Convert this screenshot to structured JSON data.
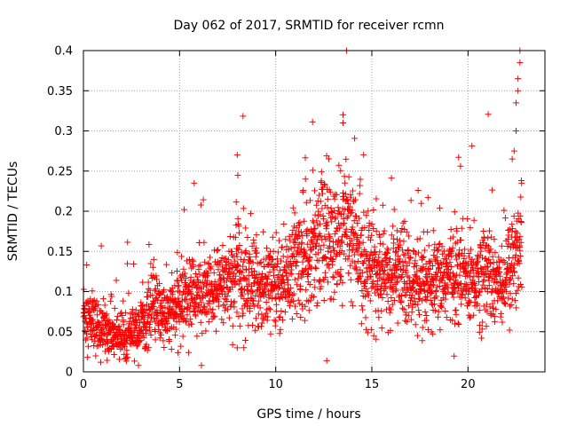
{
  "chart_data": {
    "type": "scatter",
    "title": "Day 062 of 2017, SRMTID for receiver rcmn",
    "xlabel": "GPS time / hours",
    "ylabel": "SRMTID / TECUs",
    "xlim": [
      0,
      24
    ],
    "ylim": [
      0,
      0.4
    ],
    "x_ticks": [
      0,
      5,
      10,
      15,
      20
    ],
    "x_tick_labels": [
      "0",
      "5",
      "10",
      "15",
      "20"
    ],
    "y_ticks": [
      0,
      0.05,
      0.1,
      0.15,
      0.2,
      0.25,
      0.3,
      0.35,
      0.4
    ],
    "y_tick_labels": [
      "0",
      "0.05",
      "0.1",
      "0.15",
      "0.2",
      "0.25",
      "0.3",
      "0.35",
      "0.4"
    ],
    "grid": true,
    "marker": "plus",
    "color": "#ff0000",
    "series": [
      {
        "name": "SRMTID",
        "x": [
          0.0,
          0.2,
          0.4,
          0.6,
          0.8,
          1.0,
          1.2,
          1.4,
          1.6,
          1.8,
          2.0,
          2.2,
          2.4,
          2.6,
          2.8,
          3.0,
          3.2,
          3.4,
          3.6,
          3.8,
          4.0,
          4.2,
          4.4,
          4.6,
          4.8,
          5.0,
          5.2,
          5.4,
          5.6,
          5.8,
          6.0,
          6.2,
          6.4,
          6.6,
          6.8,
          7.0,
          7.2,
          7.4,
          7.6,
          7.8,
          8.0,
          8.2,
          8.4,
          8.6,
          8.8,
          9.0,
          9.2,
          9.4,
          9.6,
          9.8,
          10.0,
          10.2,
          10.4,
          10.6,
          10.8,
          11.0,
          11.2,
          11.4,
          11.6,
          11.8,
          12.0,
          12.2,
          12.4,
          12.6,
          12.8,
          13.0,
          13.2,
          13.4,
          13.6,
          13.8,
          14.0,
          14.2,
          14.4,
          14.6,
          14.8,
          15.0,
          15.2,
          15.4,
          15.6,
          15.8,
          16.0,
          16.2,
          16.4,
          16.6,
          16.8,
          17.0,
          17.2,
          17.4,
          17.6,
          17.8,
          18.0,
          18.2,
          18.4,
          18.6,
          18.8,
          19.0,
          19.2,
          19.4,
          19.6,
          19.8,
          20.0,
          20.2,
          20.4,
          20.6,
          20.8,
          21.0,
          21.2,
          21.4,
          21.6,
          21.8,
          22.0,
          22.2,
          22.4,
          22.6,
          22.8
        ],
        "y": [
          0.075,
          0.068,
          0.062,
          0.058,
          0.056,
          0.054,
          0.052,
          0.05,
          0.048,
          0.047,
          0.046,
          0.046,
          0.046,
          0.048,
          0.052,
          0.058,
          0.064,
          0.072,
          0.08,
          0.078,
          0.074,
          0.07,
          0.07,
          0.072,
          0.078,
          0.086,
          0.09,
          0.094,
          0.097,
          0.097,
          0.095,
          0.092,
          0.092,
          0.094,
          0.098,
          0.102,
          0.108,
          0.114,
          0.12,
          0.122,
          0.125,
          0.125,
          0.118,
          0.112,
          0.108,
          0.106,
          0.106,
          0.108,
          0.11,
          0.11,
          0.112,
          0.112,
          0.116,
          0.12,
          0.13,
          0.135,
          0.14,
          0.146,
          0.15,
          0.154,
          0.16,
          0.168,
          0.175,
          0.17,
          0.16,
          0.155,
          0.156,
          0.17,
          0.185,
          0.18,
          0.165,
          0.155,
          0.146,
          0.14,
          0.135,
          0.13,
          0.125,
          0.12,
          0.118,
          0.118,
          0.12,
          0.125,
          0.128,
          0.125,
          0.118,
          0.112,
          0.108,
          0.104,
          0.1,
          0.1,
          0.102,
          0.105,
          0.11,
          0.115,
          0.118,
          0.12,
          0.122,
          0.122,
          0.12,
          0.118,
          0.116,
          0.115,
          0.115,
          0.118,
          0.12,
          0.122,
          0.12,
          0.118,
          0.116,
          0.118,
          0.12,
          0.126,
          0.14,
          0.16,
          0.18
        ]
      }
    ],
    "notable_points": [
      {
        "x": 8.0,
        "y": 0.27
      },
      {
        "x": 13.5,
        "y": 0.32
      },
      {
        "x": 13.5,
        "y": 0.31
      },
      {
        "x": 22.7,
        "y": 0.4
      },
      {
        "x": 22.7,
        "y": 0.385
      },
      {
        "x": 22.6,
        "y": 0.365
      },
      {
        "x": 22.6,
        "y": 0.35
      },
      {
        "x": 22.5,
        "y": 0.335
      },
      {
        "x": 22.5,
        "y": 0.3
      },
      {
        "x": 22.4,
        "y": 0.275
      },
      {
        "x": 22.3,
        "y": 0.265
      },
      {
        "x": 8.0,
        "y": 0.03
      },
      {
        "x": 0.9,
        "y": 0.012
      }
    ]
  }
}
